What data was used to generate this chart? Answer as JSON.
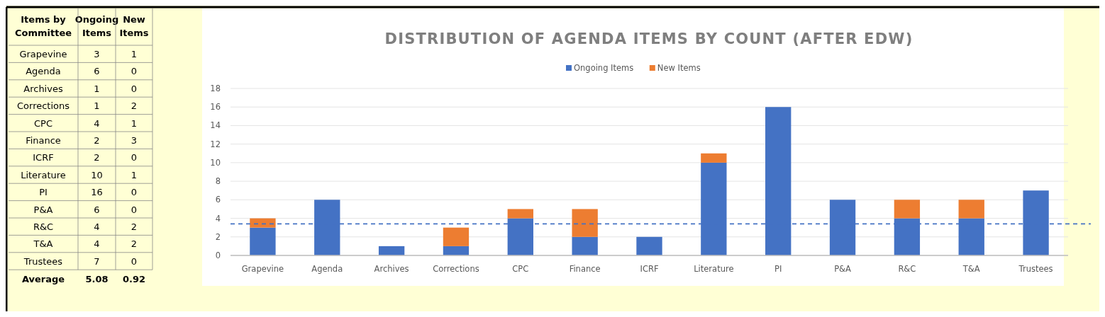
{
  "chart_data": [
    {
      "type": "heatmap",
      "data_labels": true,
      "categories": [
        "Ongoing Items",
        "New Items"
      ],
      "y_categories": [
        "Grapevine",
        "Agenda",
        "Archives",
        "Corrections",
        "CPC",
        "Finance",
        "ICRF",
        "Literature",
        "PI",
        "P&A",
        "R&C",
        "T&A",
        "Trustees"
      ],
      "cells": [
        [
          3,
          1
        ],
        [
          6,
          0
        ],
        [
          1,
          0
        ],
        [
          1,
          2
        ],
        [
          4,
          1
        ],
        [
          2,
          3
        ],
        [
          2,
          0
        ],
        [
          10,
          1
        ],
        [
          16,
          0
        ],
        [
          6,
          0
        ],
        [
          4,
          2
        ],
        [
          4,
          2
        ],
        [
          7,
          0
        ]
      ],
      "annotations": [
        "Items by Committee",
        "Average",
        "5.08",
        "0.92"
      ]
    },
    {
      "type": "bar",
      "title": "DISTRIBUTION OF AGENDA ITEMS BY COUNT (AFTER EDW)",
      "categories": [
        "Grapevine",
        "Agenda",
        "Archives",
        "Corrections",
        "CPC",
        "Finance",
        "ICRF",
        "Literature",
        "PI",
        "P&A",
        "R&C",
        "T&A",
        "Trustees"
      ],
      "series": [
        {
          "name": "Ongoing Items",
          "color": "#4472c4",
          "values": [
            3,
            6,
            1,
            1,
            4,
            2,
            2,
            10,
            16,
            6,
            4,
            4,
            7
          ]
        },
        {
          "name": "New Items",
          "color": "#ed7d31",
          "values": [
            1,
            0,
            0,
            2,
            1,
            3,
            0,
            1,
            0,
            0,
            2,
            2,
            0
          ]
        }
      ],
      "stacked": true,
      "ylim": [
        0,
        18
      ],
      "yticks": [
        0,
        2,
        4,
        6,
        8,
        10,
        12,
        14,
        16,
        18
      ],
      "grid": "y",
      "legend": "top",
      "ref_lines": [
        {
          "axis": "y",
          "value": 3.4,
          "color": "#4472c4",
          "line_style": "dashed"
        }
      ]
    }
  ]
}
